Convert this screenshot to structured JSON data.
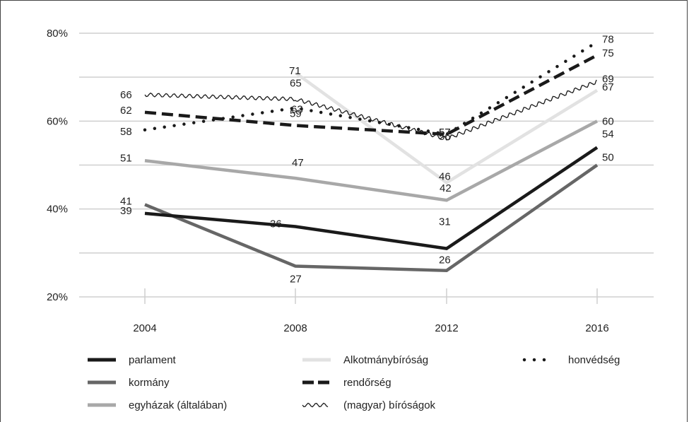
{
  "chart_data": {
    "type": "line",
    "x": [
      "2004",
      "2008",
      "2012",
      "2016"
    ],
    "ylim": [
      20,
      80
    ],
    "yticks": [
      20,
      40,
      60,
      80
    ],
    "ytick_labels": [
      "20%",
      "40%",
      "60%",
      "80%"
    ],
    "grid": true,
    "legend_position": "bottom",
    "title": "",
    "xlabel": "",
    "ylabel": "",
    "series": [
      {
        "name": "parlament",
        "values": [
          39,
          36,
          31,
          54
        ],
        "color": "#1a1a1a",
        "style": "solid"
      },
      {
        "name": "kormány",
        "values": [
          41,
          27,
          26,
          50
        ],
        "color": "#666666",
        "style": "solid"
      },
      {
        "name": "egyházak (általában)",
        "values": [
          51,
          47,
          42,
          60
        ],
        "color": "#a8a8a8",
        "style": "solid"
      },
      {
        "name": "Alkotmánybíróság",
        "values": [
          null,
          71,
          46,
          67
        ],
        "color": "#e2e2e2",
        "style": "solid"
      },
      {
        "name": "rendőrség",
        "values": [
          62,
          59,
          57,
          75
        ],
        "color": "#1a1a1a",
        "style": "dashed"
      },
      {
        "name": "(magyar) bíróságok",
        "values": [
          66,
          65,
          56,
          69
        ],
        "color": "#1a1a1a",
        "style": "wavy"
      },
      {
        "name": "honvédség",
        "values": [
          58,
          63,
          57,
          78
        ],
        "color": "#1a1a1a",
        "style": "dotted"
      }
    ]
  }
}
